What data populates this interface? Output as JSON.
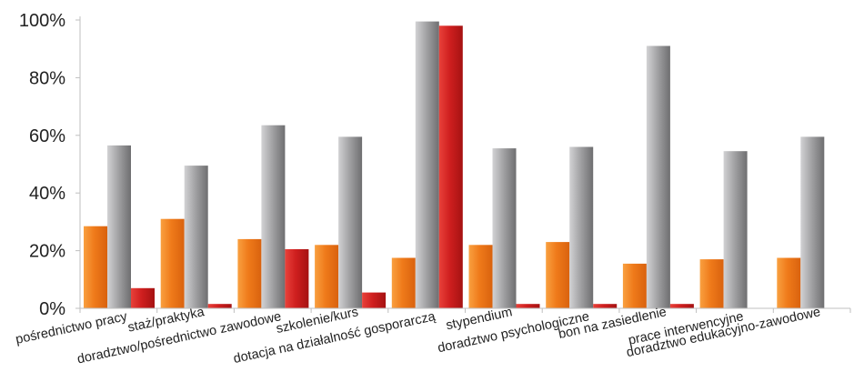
{
  "chart_data": {
    "type": "bar",
    "categories": [
      "pośrednictwo pracy",
      "staż/praktyka",
      "doradztwo/pośrednictwo zawodowe",
      "szkolenie/kurs",
      "dotacja na działalność gosporarczą",
      "stypendium",
      "doradztwo psychologiczne",
      "bon na zasiedlenie",
      "prace interwencyjne",
      "doradztwo edukacyjno-zawodowe"
    ],
    "series": [
      {
        "color": "#f07d1e",
        "values": [
          28.5,
          31,
          24,
          22,
          17.5,
          22,
          23,
          15.5,
          17,
          17.5
        ]
      },
      {
        "color": "#9d9d9f",
        "values": [
          56.5,
          49.5,
          63.5,
          59.5,
          99.5,
          55.5,
          56,
          91,
          54.5,
          59.5
        ]
      },
      {
        "color": "#d11f1f",
        "values": [
          7,
          1.5,
          20.5,
          5.5,
          98,
          1.5,
          1.5,
          1.5,
          0,
          0
        ]
      }
    ],
    "yticks": [
      "0%",
      "20%",
      "40%",
      "60%",
      "80%",
      "100%"
    ],
    "ylim": [
      0,
      100
    ],
    "grid": false,
    "legend": "none"
  }
}
